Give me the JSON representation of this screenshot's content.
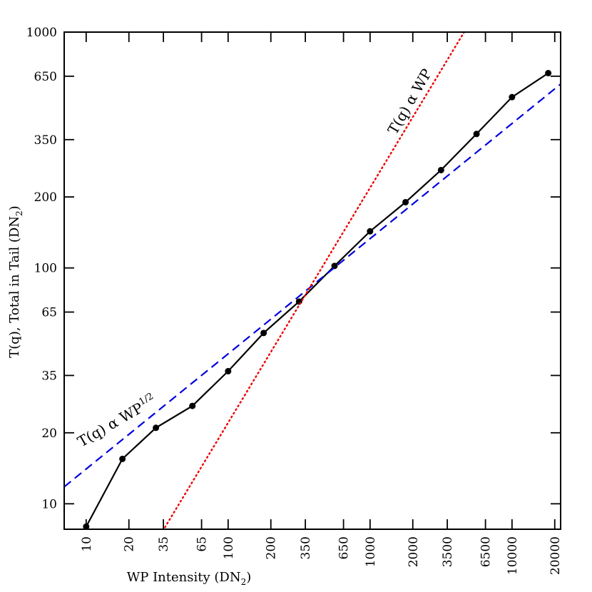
{
  "chart_data": {
    "type": "line",
    "x_scale": "log",
    "y_scale": "log",
    "xlabel": "WP Intensity (DN",
    "xlabel_sub": "2",
    "xlabel_tail": ")",
    "ylabel": "T(q), Total in Tail (DN",
    "ylabel_sub": "2",
    "ylabel_tail": ")",
    "xlim": [
      7,
      22000
    ],
    "ylim": [
      7.8,
      1000
    ],
    "x_ticks": [
      10,
      20,
      35,
      65,
      100,
      200,
      350,
      650,
      1000,
      2000,
      3500,
      6500,
      10000,
      20000
    ],
    "x_tick_labels": [
      "10",
      "20",
      "35",
      "65",
      "100",
      "200",
      "350",
      "650",
      "1000",
      "2000",
      "3500",
      "6500",
      "10000",
      "20000"
    ],
    "y_ticks": [
      10,
      20,
      35,
      65,
      100,
      200,
      350,
      650,
      1000
    ],
    "y_tick_labels": [
      "10",
      "20",
      "35",
      "65",
      "100",
      "200",
      "350",
      "650",
      "1000"
    ],
    "grid": false,
    "series": [
      {
        "style": "solid-black-with-markers",
        "color": "#000000",
        "x": [
          10,
          18,
          31,
          56,
          100,
          178,
          316,
          562,
          1000,
          1778,
          3162,
          5623,
          10000,
          18000
        ],
        "y": [
          8.0,
          15.5,
          21.0,
          26.0,
          36.5,
          53.0,
          72.0,
          102.0,
          143.0,
          190.0,
          260.0,
          370.0,
          530.0,
          670.0
        ]
      },
      {
        "style": "dashed",
        "color": "#0000dd",
        "x": [
          7,
          22000
        ],
        "y": [
          11.8,
          602.0
        ]
      },
      {
        "style": "dotted",
        "color": "#ee0000",
        "x": [
          30,
          4600
        ],
        "y": [
          6.65,
          1000.0
        ]
      }
    ],
    "annotations": {
      "linear": {
        "base": "T(q)  α WP",
        "sup": ""
      },
      "sqrt": {
        "base": "T(q)  α WP",
        "sup": "1/2"
      }
    }
  }
}
